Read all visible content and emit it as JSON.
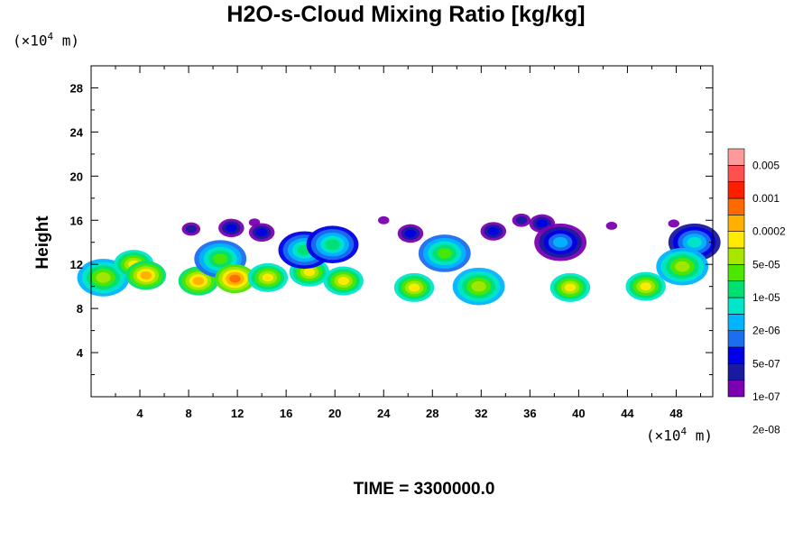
{
  "chart_data": {
    "type": "heatmap",
    "title": "H2O-s-Cloud Mixing Ratio [kg/kg]",
    "ylabel": "Height",
    "xlabel": "",
    "x_unit": "(×10",
    "x_unit_exp": "4",
    "x_unit_tail": " m)",
    "y_unit": "(×10",
    "y_unit_exp": "4",
    "y_unit_tail": " m)",
    "xlim": [
      0,
      51
    ],
    "ylim": [
      0,
      30
    ],
    "x_ticks": [
      "4",
      "8",
      "12",
      "16",
      "20",
      "24",
      "28",
      "32",
      "36",
      "40",
      "44",
      "48"
    ],
    "y_ticks": [
      "4",
      "8",
      "12",
      "16",
      "20",
      "24",
      "28"
    ],
    "grid": false,
    "legend_position": "right",
    "colorbar": {
      "labels": [
        "0.005",
        "0.001",
        "0.0002",
        "5e-05",
        "1e-05",
        "2e-06",
        "5e-07",
        "1e-07",
        "2e-08"
      ],
      "colors": [
        "#7a00b0",
        "#1a1aa0",
        "#0000e6",
        "#1c6ef0",
        "#00b4ff",
        "#00e6c8",
        "#00e070",
        "#4ce600",
        "#a6e600",
        "#ffeb00",
        "#ffb000",
        "#ff6a00",
        "#ff1e00",
        "#ff5050",
        "#ff9a9a"
      ]
    },
    "cloud_features": [
      {
        "x": 1.0,
        "y": 10.8,
        "level": 8
      },
      {
        "x": 3.5,
        "y": 12.0,
        "level": 9
      },
      {
        "x": 4.5,
        "y": 11.0,
        "level": 10
      },
      {
        "x": 8.2,
        "y": 15.2,
        "level": 1
      },
      {
        "x": 8.8,
        "y": 10.5,
        "level": 10
      },
      {
        "x": 10.6,
        "y": 12.5,
        "level": 7
      },
      {
        "x": 11.5,
        "y": 15.3,
        "level": 2
      },
      {
        "x": 11.8,
        "y": 10.7,
        "level": 11
      },
      {
        "x": 13.4,
        "y": 15.8,
        "level": 0
      },
      {
        "x": 14.0,
        "y": 14.9,
        "level": 2
      },
      {
        "x": 14.5,
        "y": 10.8,
        "level": 9
      },
      {
        "x": 17.9,
        "y": 11.3,
        "level": 9
      },
      {
        "x": 17.5,
        "y": 13.3,
        "level": 6
      },
      {
        "x": 19.8,
        "y": 13.8,
        "level": 6
      },
      {
        "x": 20.7,
        "y": 10.5,
        "level": 9
      },
      {
        "x": 24.0,
        "y": 16.0,
        "level": 0
      },
      {
        "x": 26.2,
        "y": 14.8,
        "level": 2
      },
      {
        "x": 26.5,
        "y": 9.9,
        "level": 9
      },
      {
        "x": 29.0,
        "y": 13.0,
        "level": 7
      },
      {
        "x": 33.0,
        "y": 15.0,
        "level": 2
      },
      {
        "x": 31.8,
        "y": 10.0,
        "level": 8
      },
      {
        "x": 35.3,
        "y": 16.0,
        "level": 1
      },
      {
        "x": 37.0,
        "y": 15.7,
        "level": 2
      },
      {
        "x": 38.5,
        "y": 14.0,
        "level": 4
      },
      {
        "x": 39.3,
        "y": 9.9,
        "level": 9
      },
      {
        "x": 42.7,
        "y": 15.5,
        "level": 0
      },
      {
        "x": 45.5,
        "y": 10.0,
        "level": 9
      },
      {
        "x": 47.8,
        "y": 15.7,
        "level": 0
      },
      {
        "x": 49.5,
        "y": 14.0,
        "level": 5
      },
      {
        "x": 48.5,
        "y": 11.8,
        "level": 8
      }
    ]
  },
  "time_label": "TIME = 3300000.0"
}
